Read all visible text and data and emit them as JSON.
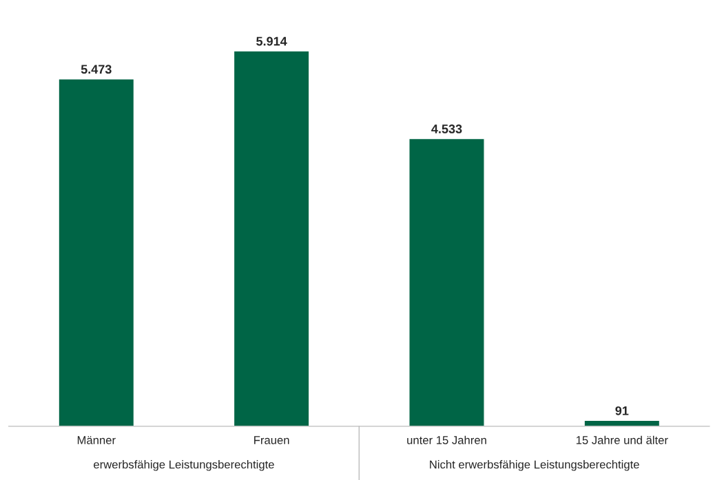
{
  "chart_data": {
    "type": "bar",
    "categories": [
      "Männer",
      "Frauen",
      "unter 15 Jahren",
      "15 Jahre und älter"
    ],
    "values": [
      5473,
      5914,
      4533,
      91
    ],
    "value_labels": [
      "5.473",
      "5.914",
      "4.533",
      "91"
    ],
    "color": "#006546",
    "tick_labels": "x",
    "annotations": [
      "erwerbsfähige Leistungsberechtigte",
      "Nicht erwerbsfähige Leistungsberechtigte"
    ]
  }
}
